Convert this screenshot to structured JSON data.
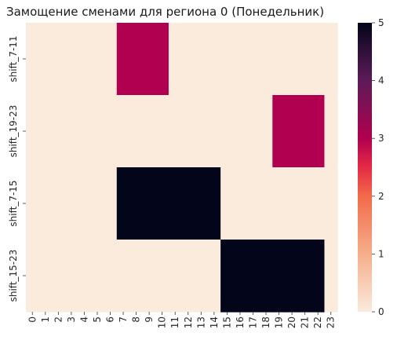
{
  "chart_data": {
    "type": "heatmap",
    "title": "Замощение сменами для региона 0 (Понедельник)",
    "xlabel": "",
    "ylabel": "",
    "x_categories": [
      "0",
      "1",
      "2",
      "3",
      "4",
      "5",
      "6",
      "7",
      "8",
      "9",
      "10",
      "11",
      "12",
      "13",
      "14",
      "15",
      "16",
      "17",
      "18",
      "19",
      "20",
      "21",
      "22",
      "23"
    ],
    "y_categories": [
      "shift_7-11",
      "shift_19-23",
      "shift_7-15",
      "shift_15-23"
    ],
    "x_tick_labels": [
      "0",
      "1",
      "2",
      "3",
      "4",
      "5",
      "6",
      "7",
      "8",
      "9",
      "10",
      "11",
      "12",
      "13",
      "14",
      "15",
      "16",
      "17",
      "18",
      "19",
      "20",
      "21",
      "22",
      "23"
    ],
    "values": [
      [
        0,
        0,
        0,
        0,
        0,
        0,
        0,
        3,
        3,
        3,
        3,
        0,
        0,
        0,
        0,
        0,
        0,
        0,
        0,
        0,
        0,
        0,
        0,
        0
      ],
      [
        0,
        0,
        0,
        0,
        0,
        0,
        0,
        0,
        0,
        0,
        0,
        0,
        0,
        0,
        0,
        0,
        0,
        0,
        0,
        3,
        3,
        3,
        3,
        0
      ],
      [
        0,
        0,
        0,
        0,
        0,
        0,
        0,
        5,
        5,
        5,
        5,
        5,
        5,
        5,
        5,
        0,
        0,
        0,
        0,
        0,
        0,
        0,
        0,
        0
      ],
      [
        0,
        0,
        0,
        0,
        0,
        0,
        0,
        0,
        0,
        0,
        0,
        0,
        0,
        0,
        0,
        5,
        5,
        5,
        5,
        5,
        5,
        5,
        5,
        0
      ]
    ],
    "color_range": [
      0,
      5
    ],
    "colorbar_ticks": [
      "0",
      "1",
      "2",
      "3",
      "4",
      "5"
    ],
    "colormap": "rocket_r",
    "grid": false,
    "legend": "colorbar-right"
  }
}
